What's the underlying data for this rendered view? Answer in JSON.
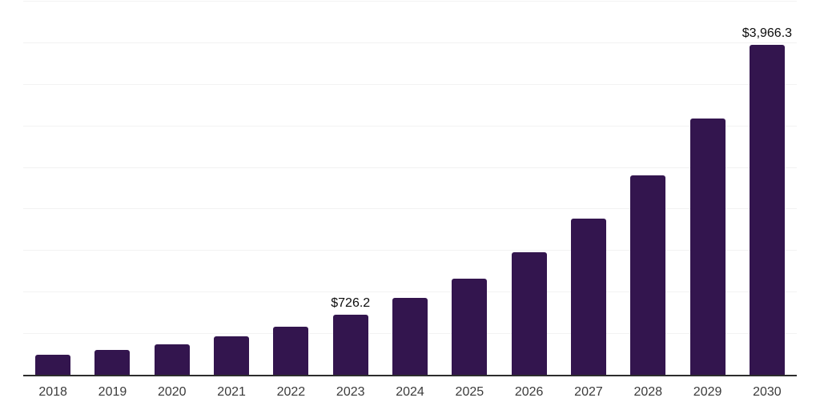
{
  "chart_data": {
    "type": "bar",
    "title": "",
    "xlabel": "",
    "ylabel": "",
    "categories": [
      "2018",
      "2019",
      "2020",
      "2021",
      "2022",
      "2023",
      "2024",
      "2025",
      "2026",
      "2027",
      "2028",
      "2029",
      "2030"
    ],
    "values": [
      245,
      300,
      370,
      465,
      580,
      726.2,
      930,
      1160,
      1470,
      1875,
      2395,
      3080,
      3966.3
    ],
    "data_labels": [
      {
        "category": "2023",
        "text": "$726.2"
      },
      {
        "category": "2030",
        "text": "$3,966.3"
      }
    ],
    "ylim": [
      0,
      4500
    ],
    "gridline_step": 500,
    "legend": "none",
    "grid": "horizontal",
    "y_tick_labels_visible": false,
    "colors": {
      "bar": "#33154E",
      "gridline": "#f2f2f2",
      "axis_line": "#2d2d2d",
      "x_tick_label": "#3b3b3b",
      "data_label": "#0d0d0d",
      "background": "#ffffff"
    }
  }
}
